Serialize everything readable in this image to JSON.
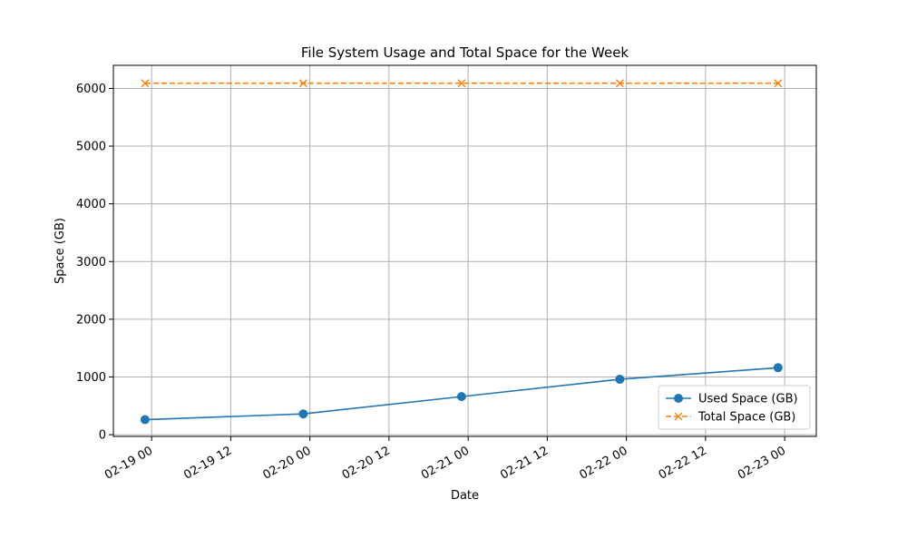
{
  "chart_data": {
    "type": "line",
    "title": "File System Usage and Total Space for the Week",
    "xlabel": "Date",
    "ylabel": "Space (GB)",
    "x": [
      "2024-02-18T23:00",
      "2024-02-19T23:00",
      "2024-02-20T23:00",
      "2024-02-21T23:00",
      "2024-02-22T23:00"
    ],
    "x_ticks": [
      {
        "at": "2024-02-19T00:00",
        "label": "02-19 00"
      },
      {
        "at": "2024-02-19T12:00",
        "label": "02-19 12"
      },
      {
        "at": "2024-02-20T00:00",
        "label": "02-20 00"
      },
      {
        "at": "2024-02-20T12:00",
        "label": "02-20 12"
      },
      {
        "at": "2024-02-21T00:00",
        "label": "02-21 00"
      },
      {
        "at": "2024-02-21T12:00",
        "label": "02-21 12"
      },
      {
        "at": "2024-02-22T00:00",
        "label": "02-22 00"
      },
      {
        "at": "2024-02-22T12:00",
        "label": "02-22 12"
      },
      {
        "at": "2024-02-23T00:00",
        "label": "02-23 00"
      }
    ],
    "xlim": [
      "2024-02-18T18:12",
      "2024-02-23T04:48"
    ],
    "y_ticks": [
      0,
      1000,
      2000,
      3000,
      4000,
      5000,
      6000
    ],
    "ylim": [
      -30,
      6400
    ],
    "grid": true,
    "legend_position": "lower right",
    "series": [
      {
        "name": "Used Space (GB)",
        "values": [
          260,
          360,
          660,
          960,
          1160
        ],
        "color": "#1f77b4",
        "marker": "circle",
        "line_style": "solid"
      },
      {
        "name": "Total Space (GB)",
        "values": [
          6090,
          6090,
          6090,
          6090,
          6090
        ],
        "color": "#ff7f0e",
        "marker": "x",
        "line_style": "dashed"
      }
    ]
  }
}
